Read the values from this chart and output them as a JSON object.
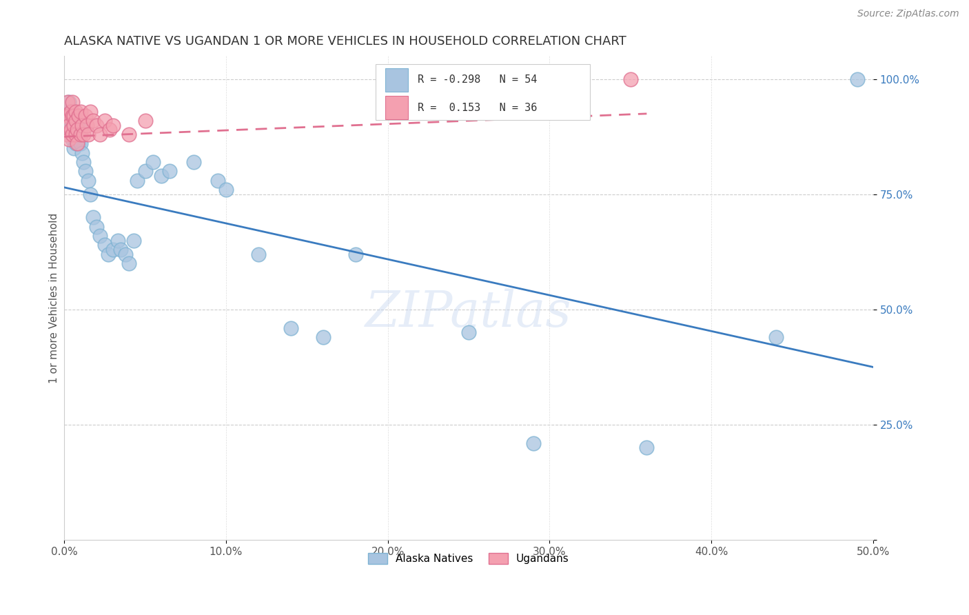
{
  "title": "ALASKA NATIVE VS UGANDAN 1 OR MORE VEHICLES IN HOUSEHOLD CORRELATION CHART",
  "source": "Source: ZipAtlas.com",
  "ylabel": "1 or more Vehicles in Household",
  "xlim": [
    0.0,
    0.5
  ],
  "ylim": [
    0.0,
    1.05
  ],
  "alaska_color": "#a8c4e0",
  "alaska_edge_color": "#7fb3d3",
  "ugandan_color": "#f4a0b0",
  "ugandan_edge_color": "#e07090",
  "blue_line_color": "#3a7bbf",
  "pink_line_color": "#e07090",
  "watermark": "ZIPatlas",
  "background_color": "#ffffff",
  "grid_color": "#cccccc",
  "legend_R_alaska": "-0.298",
  "legend_N_alaska": "54",
  "legend_R_ugandan": "0.153",
  "legend_N_ugandan": "36",
  "alaska_x": [
    0.001,
    0.002,
    0.003,
    0.003,
    0.004,
    0.004,
    0.005,
    0.005,
    0.005,
    0.006,
    0.006,
    0.006,
    0.007,
    0.007,
    0.007,
    0.008,
    0.008,
    0.009,
    0.009,
    0.01,
    0.01,
    0.011,
    0.012,
    0.013,
    0.015,
    0.016,
    0.018,
    0.02,
    0.022,
    0.025,
    0.027,
    0.03,
    0.033,
    0.035,
    0.038,
    0.04,
    0.043,
    0.045,
    0.05,
    0.055,
    0.06,
    0.065,
    0.08,
    0.095,
    0.1,
    0.12,
    0.14,
    0.16,
    0.18,
    0.25,
    0.29,
    0.36,
    0.44,
    0.49
  ],
  "alaska_y": [
    0.93,
    0.91,
    0.95,
    0.89,
    0.92,
    0.88,
    0.93,
    0.9,
    0.87,
    0.92,
    0.88,
    0.85,
    0.91,
    0.88,
    0.86,
    0.9,
    0.87,
    0.88,
    0.86,
    0.89,
    0.86,
    0.84,
    0.82,
    0.8,
    0.78,
    0.75,
    0.7,
    0.68,
    0.66,
    0.64,
    0.62,
    0.63,
    0.65,
    0.63,
    0.62,
    0.6,
    0.65,
    0.78,
    0.8,
    0.82,
    0.79,
    0.8,
    0.82,
    0.78,
    0.76,
    0.62,
    0.46,
    0.44,
    0.62,
    0.45,
    0.21,
    0.2,
    0.44,
    1.0
  ],
  "ugandan_x": [
    0.001,
    0.002,
    0.002,
    0.003,
    0.003,
    0.003,
    0.004,
    0.004,
    0.005,
    0.005,
    0.005,
    0.006,
    0.006,
    0.007,
    0.007,
    0.007,
    0.008,
    0.008,
    0.009,
    0.01,
    0.01,
    0.011,
    0.012,
    0.013,
    0.014,
    0.015,
    0.016,
    0.018,
    0.02,
    0.022,
    0.025,
    0.028,
    0.03,
    0.04,
    0.05,
    0.35
  ],
  "ugandan_y": [
    0.92,
    0.95,
    0.88,
    0.92,
    0.9,
    0.87,
    0.93,
    0.89,
    0.92,
    0.95,
    0.88,
    0.92,
    0.9,
    0.88,
    0.93,
    0.91,
    0.86,
    0.89,
    0.92,
    0.88,
    0.93,
    0.9,
    0.88,
    0.92,
    0.9,
    0.88,
    0.93,
    0.91,
    0.9,
    0.88,
    0.91,
    0.89,
    0.9,
    0.88,
    0.91,
    1.0
  ],
  "blue_line_x": [
    0.0,
    0.5
  ],
  "blue_line_y": [
    0.765,
    0.375
  ],
  "pink_line_x": [
    0.0,
    0.36
  ],
  "pink_line_y": [
    0.875,
    0.925
  ]
}
